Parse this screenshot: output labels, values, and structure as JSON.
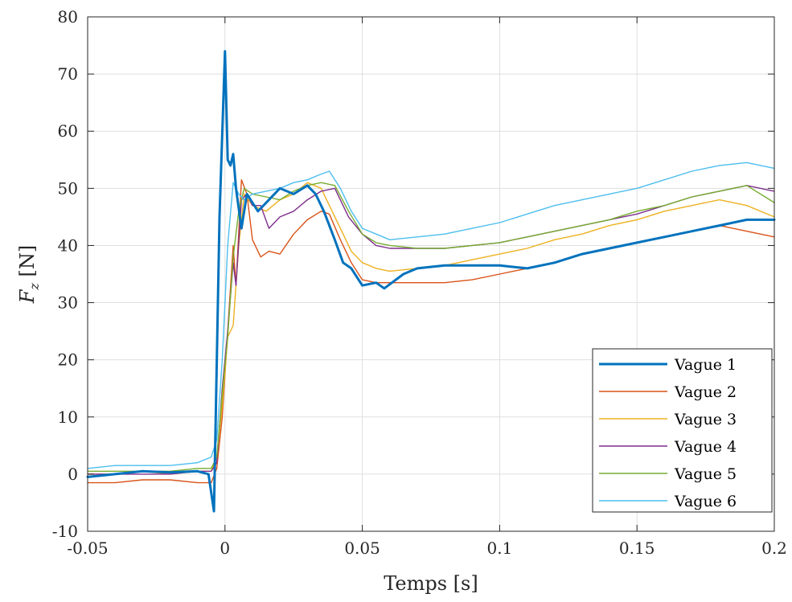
{
  "chart_data": {
    "type": "line",
    "xlabel": "Temps [s]",
    "ylabel": "F",
    "ylabel_sub": "z",
    "ylabel_unit": " [N]",
    "xlim": [
      -0.05,
      0.2
    ],
    "ylim": [
      -10,
      80
    ],
    "xticks": [
      -0.05,
      0,
      0.05,
      0.1,
      0.15,
      0.2
    ],
    "xtick_labels": [
      "-0.05",
      "0",
      "0.05",
      "0.1",
      "0.15",
      "0.2"
    ],
    "yticks": [
      -10,
      0,
      10,
      20,
      30,
      40,
      50,
      60,
      70,
      80
    ],
    "ytick_labels": [
      "-10",
      "0",
      "10",
      "20",
      "30",
      "40",
      "50",
      "60",
      "70",
      "80"
    ],
    "grid": true,
    "legend_position": "bottom-right",
    "series": [
      {
        "name": "Vague 1",
        "color": "#0072BD",
        "line_width": 3,
        "x": [
          -0.05,
          -0.04,
          -0.03,
          -0.02,
          -0.01,
          -0.006,
          -0.004,
          -0.002,
          0.0,
          0.001,
          0.002,
          0.003,
          0.004,
          0.006,
          0.008,
          0.012,
          0.016,
          0.02,
          0.025,
          0.03,
          0.033,
          0.036,
          0.04,
          0.043,
          0.046,
          0.05,
          0.055,
          0.058,
          0.065,
          0.07,
          0.08,
          0.09,
          0.1,
          0.11,
          0.12,
          0.13,
          0.14,
          0.15,
          0.16,
          0.17,
          0.18,
          0.19,
          0.2
        ],
        "y": [
          -0.5,
          0.0,
          0.5,
          0.3,
          0.5,
          0.0,
          -6.5,
          45.0,
          74.0,
          55.0,
          54.0,
          56.0,
          50.0,
          43.0,
          49.0,
          46.0,
          48.0,
          50.0,
          49.0,
          50.5,
          49.0,
          46.0,
          41.0,
          37.0,
          36.0,
          33.0,
          33.5,
          32.5,
          35.0,
          36.0,
          36.5,
          36.5,
          36.5,
          36.0,
          37.0,
          38.5,
          39.5,
          40.5,
          41.5,
          42.5,
          43.5,
          44.5,
          44.5
        ]
      },
      {
        "name": "Vague 2",
        "color": "#D95319",
        "line_width": 1.4,
        "x": [
          -0.05,
          -0.04,
          -0.03,
          -0.02,
          -0.01,
          -0.005,
          -0.003,
          -0.001,
          0.001,
          0.003,
          0.004,
          0.006,
          0.008,
          0.01,
          0.013,
          0.016,
          0.02,
          0.025,
          0.03,
          0.035,
          0.038,
          0.042,
          0.046,
          0.05,
          0.055,
          0.06,
          0.07,
          0.08,
          0.09,
          0.1,
          0.11,
          0.12,
          0.13,
          0.14,
          0.15,
          0.16,
          0.17,
          0.18,
          0.19,
          0.2
        ],
        "y": [
          -1.5,
          -1.5,
          -1.0,
          -1.0,
          -1.5,
          -1.5,
          1.0,
          10.0,
          25.0,
          40.0,
          33.0,
          51.5,
          49.0,
          41.0,
          38.0,
          39.0,
          38.5,
          42.0,
          44.5,
          46.0,
          45.5,
          41.0,
          37.0,
          34.0,
          33.5,
          33.5,
          33.5,
          33.5,
          34.0,
          35.0,
          36.0,
          37.0,
          38.5,
          39.5,
          40.5,
          41.5,
          42.5,
          43.5,
          42.5,
          41.5
        ]
      },
      {
        "name": "Vague 3",
        "color": "#EDB120",
        "line_width": 1.4,
        "x": [
          -0.05,
          -0.04,
          -0.03,
          -0.02,
          -0.01,
          -0.005,
          -0.003,
          -0.001,
          0.001,
          0.003,
          0.005,
          0.007,
          0.01,
          0.015,
          0.02,
          0.025,
          0.03,
          0.035,
          0.038,
          0.042,
          0.046,
          0.05,
          0.055,
          0.06,
          0.07,
          0.08,
          0.09,
          0.1,
          0.11,
          0.12,
          0.13,
          0.14,
          0.15,
          0.16,
          0.17,
          0.18,
          0.19,
          0.2
        ],
        "y": [
          0.0,
          0.0,
          0.5,
          0.0,
          0.5,
          0.5,
          3.0,
          12.0,
          24.0,
          26.0,
          40.0,
          49.0,
          47.0,
          46.0,
          48.0,
          49.0,
          51.0,
          50.0,
          47.0,
          43.0,
          39.0,
          37.0,
          36.0,
          35.5,
          36.0,
          36.5,
          37.5,
          38.5,
          39.5,
          41.0,
          42.0,
          43.5,
          44.5,
          46.0,
          47.0,
          48.0,
          47.0,
          45.0
        ]
      },
      {
        "name": "Vague 4",
        "color": "#7E2F8E",
        "line_width": 1.4,
        "x": [
          -0.05,
          -0.04,
          -0.03,
          -0.02,
          -0.01,
          -0.005,
          -0.003,
          -0.001,
          0.001,
          0.003,
          0.004,
          0.006,
          0.008,
          0.01,
          0.013,
          0.016,
          0.02,
          0.025,
          0.03,
          0.035,
          0.04,
          0.045,
          0.05,
          0.055,
          0.06,
          0.07,
          0.08,
          0.09,
          0.1,
          0.11,
          0.12,
          0.13,
          0.14,
          0.15,
          0.16,
          0.17,
          0.18,
          0.19,
          0.2
        ],
        "y": [
          0.0,
          0.0,
          0.0,
          0.0,
          0.5,
          0.5,
          2.0,
          15.0,
          25.0,
          37.0,
          33.0,
          48.0,
          49.0,
          47.0,
          47.0,
          43.0,
          45.0,
          46.0,
          48.0,
          49.5,
          50.0,
          45.0,
          42.0,
          40.0,
          39.5,
          39.5,
          39.5,
          40.0,
          40.5,
          41.5,
          42.5,
          43.5,
          44.5,
          45.5,
          47.0,
          48.5,
          49.5,
          50.5,
          49.5
        ]
      },
      {
        "name": "Vague 5",
        "color": "#77AC30",
        "line_width": 1.4,
        "x": [
          -0.05,
          -0.04,
          -0.03,
          -0.02,
          -0.01,
          -0.005,
          -0.003,
          -0.001,
          0.001,
          0.003,
          0.005,
          0.007,
          0.01,
          0.015,
          0.02,
          0.025,
          0.03,
          0.035,
          0.04,
          0.045,
          0.05,
          0.055,
          0.06,
          0.07,
          0.08,
          0.09,
          0.1,
          0.11,
          0.12,
          0.13,
          0.14,
          0.15,
          0.16,
          0.17,
          0.18,
          0.19,
          0.2
        ],
        "y": [
          0.5,
          0.5,
          0.5,
          0.5,
          1.0,
          1.0,
          3.0,
          14.0,
          24.0,
          38.0,
          46.0,
          50.0,
          49.0,
          48.5,
          48.0,
          49.5,
          50.5,
          51.0,
          50.5,
          46.0,
          42.0,
          40.5,
          40.0,
          39.5,
          39.5,
          40.0,
          40.5,
          41.5,
          42.5,
          43.5,
          44.5,
          46.0,
          47.0,
          48.5,
          49.5,
          50.5,
          47.5
        ]
      },
      {
        "name": "Vague 6",
        "color": "#4DBEEE",
        "line_width": 1.4,
        "x": [
          -0.05,
          -0.04,
          -0.03,
          -0.02,
          -0.01,
          -0.005,
          -0.003,
          -0.001,
          0.001,
          0.003,
          0.005,
          0.007,
          0.01,
          0.015,
          0.02,
          0.025,
          0.03,
          0.035,
          0.038,
          0.042,
          0.046,
          0.05,
          0.055,
          0.06,
          0.07,
          0.08,
          0.09,
          0.1,
          0.11,
          0.12,
          0.13,
          0.14,
          0.15,
          0.16,
          0.17,
          0.18,
          0.19,
          0.2
        ],
        "y": [
          1.0,
          1.5,
          1.5,
          1.5,
          2.0,
          3.0,
          6.0,
          20.0,
          40.0,
          51.0,
          49.0,
          48.0,
          49.0,
          49.5,
          50.0,
          51.0,
          51.5,
          52.5,
          53.0,
          50.0,
          46.0,
          43.0,
          42.0,
          41.0,
          41.5,
          42.0,
          43.0,
          44.0,
          45.5,
          47.0,
          48.0,
          49.0,
          50.0,
          51.5,
          53.0,
          54.0,
          54.5,
          53.5
        ]
      }
    ]
  }
}
